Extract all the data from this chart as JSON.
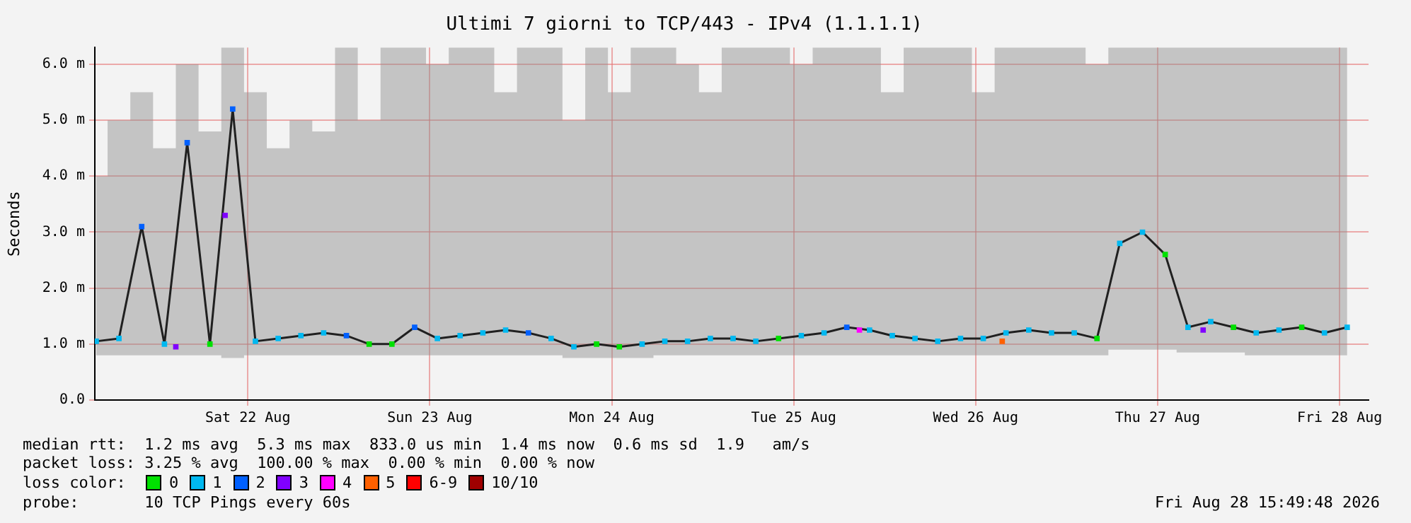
{
  "chart_data": {
    "type": "line",
    "title": "Ultimi 7 giorni to TCP/443 - IPv4 (1.1.1.1)",
    "ylabel": "Seconds",
    "x": [
      "2026-08-21T16:00",
      "2026-08-21T19:00",
      "2026-08-21T22:00",
      "2026-08-22T01:00",
      "2026-08-22T04:00",
      "2026-08-22T07:00",
      "2026-08-22T10:00",
      "2026-08-22T13:00",
      "2026-08-22T16:00",
      "2026-08-22T19:00",
      "2026-08-22T22:00",
      "2026-08-23T01:00",
      "2026-08-23T04:00",
      "2026-08-23T07:00",
      "2026-08-23T10:00",
      "2026-08-23T13:00",
      "2026-08-23T16:00",
      "2026-08-23T19:00",
      "2026-08-23T22:00",
      "2026-08-24T01:00",
      "2026-08-24T04:00",
      "2026-08-24T07:00",
      "2026-08-24T10:00",
      "2026-08-24T13:00",
      "2026-08-24T16:00",
      "2026-08-24T19:00",
      "2026-08-24T22:00",
      "2026-08-25T01:00",
      "2026-08-25T04:00",
      "2026-08-25T07:00",
      "2026-08-25T10:00",
      "2026-08-25T13:00",
      "2026-08-25T16:00",
      "2026-08-25T19:00",
      "2026-08-25T22:00",
      "2026-08-26T01:00",
      "2026-08-26T04:00",
      "2026-08-26T07:00",
      "2026-08-26T10:00",
      "2026-08-26T13:00",
      "2026-08-26T16:00",
      "2026-08-26T19:00",
      "2026-08-26T22:00",
      "2026-08-27T01:00",
      "2026-08-27T04:00",
      "2026-08-27T07:00",
      "2026-08-27T10:00",
      "2026-08-27T13:00",
      "2026-08-27T16:00",
      "2026-08-27T19:00",
      "2026-08-27T22:00",
      "2026-08-28T01:00",
      "2026-08-28T04:00",
      "2026-08-28T07:00",
      "2026-08-28T10:00",
      "2026-08-28T13:00"
    ],
    "series": [
      {
        "color": "#202020",
        "marker": "none",
        "values": [
          1.05,
          1.1,
          3.1,
          1.0,
          4.6,
          1.0,
          5.2,
          1.05,
          1.1,
          1.15,
          1.2,
          1.15,
          1.0,
          1.0,
          1.3,
          1.1,
          1.15,
          1.2,
          1.25,
          1.2,
          1.1,
          0.95,
          1.0,
          0.95,
          1.0,
          1.05,
          1.05,
          1.1,
          1.1,
          1.05,
          1.1,
          1.15,
          1.2,
          1.3,
          1.25,
          1.15,
          1.1,
          1.05,
          1.1,
          1.1,
          1.2,
          1.25,
          1.2,
          1.2,
          1.1,
          2.8,
          3.0,
          2.6,
          1.3,
          1.4,
          1.3,
          1.2,
          1.25,
          1.3,
          1.2,
          1.3
        ],
        "lower": [
          0.8,
          0.8,
          0.8,
          0.8,
          0.8,
          0.8,
          0.75,
          0.8,
          0.8,
          0.8,
          0.8,
          0.8,
          0.8,
          0.8,
          0.8,
          0.8,
          0.8,
          0.8,
          0.8,
          0.8,
          0.8,
          0.75,
          0.75,
          0.75,
          0.75,
          0.8,
          0.8,
          0.8,
          0.8,
          0.8,
          0.8,
          0.8,
          0.8,
          0.8,
          0.8,
          0.8,
          0.8,
          0.8,
          0.8,
          0.8,
          0.8,
          0.8,
          0.8,
          0.8,
          0.8,
          0.9,
          0.9,
          0.9,
          0.85,
          0.85,
          0.85,
          0.8,
          0.8,
          0.8,
          0.8,
          0.8
        ],
        "upper": [
          4.0,
          5.0,
          5.5,
          4.5,
          6.0,
          4.8,
          6.3,
          5.5,
          4.5,
          5.0,
          4.8,
          6.3,
          5.0,
          6.3,
          6.3,
          6.0,
          6.3,
          6.3,
          5.5,
          6.3,
          6.3,
          5.0,
          6.3,
          5.5,
          6.3,
          6.3,
          6.0,
          5.5,
          6.3,
          6.3,
          6.3,
          6.0,
          6.3,
          6.3,
          6.3,
          5.5,
          6.3,
          6.3,
          6.3,
          5.5,
          6.3,
          6.3,
          6.3,
          6.3,
          6.0,
          6.3,
          6.3,
          6.3,
          6.3,
          6.3,
          6.3,
          6.3,
          6.3,
          6.3,
          6.3,
          6.3
        ]
      },
      {
        "type": "scatter",
        "name": "0",
        "color": "#00e000",
        "x": [
          "2026-08-22T07:00",
          "2026-08-23T04:00",
          "2026-08-23T07:00",
          "2026-08-24T10:00",
          "2026-08-24T13:00",
          "2026-08-25T10:00",
          "2026-08-27T04:00",
          "2026-08-27T13:00",
          "2026-08-27T22:00",
          "2026-08-28T07:00"
        ],
        "values": [
          1.0,
          1.0,
          1.0,
          1.0,
          0.95,
          1.1,
          1.1,
          2.6,
          1.3,
          1.3
        ]
      },
      {
        "type": "scatter",
        "name": "1",
        "color": "#00b8f0",
        "x": [
          "2026-08-21T16:00",
          "2026-08-21T19:00",
          "2026-08-22T01:00",
          "2026-08-22T13:00",
          "2026-08-22T16:00",
          "2026-08-22T19:00",
          "2026-08-22T22:00",
          "2026-08-23T13:00",
          "2026-08-23T16:00",
          "2026-08-23T19:00",
          "2026-08-23T22:00",
          "2026-08-24T04:00",
          "2026-08-24T07:00",
          "2026-08-24T16:00",
          "2026-08-24T19:00",
          "2026-08-24T22:00",
          "2026-08-25T01:00",
          "2026-08-25T04:00",
          "2026-08-25T07:00",
          "2026-08-25T13:00",
          "2026-08-25T16:00",
          "2026-08-25T22:00",
          "2026-08-26T01:00",
          "2026-08-26T04:00",
          "2026-08-26T07:00",
          "2026-08-26T10:00",
          "2026-08-26T13:00",
          "2026-08-26T16:00",
          "2026-08-26T19:00",
          "2026-08-26T22:00",
          "2026-08-27T01:00",
          "2026-08-27T07:00",
          "2026-08-27T10:00",
          "2026-08-27T16:00",
          "2026-08-27T19:00",
          "2026-08-28T01:00",
          "2026-08-28T04:00",
          "2026-08-28T10:00",
          "2026-08-28T13:00"
        ],
        "values": [
          1.05,
          1.1,
          1.0,
          1.05,
          1.1,
          1.15,
          1.2,
          1.1,
          1.15,
          1.2,
          1.25,
          1.1,
          0.95,
          1.0,
          1.05,
          1.05,
          1.1,
          1.1,
          1.05,
          1.15,
          1.2,
          1.25,
          1.15,
          1.1,
          1.05,
          1.1,
          1.1,
          1.2,
          1.25,
          1.2,
          1.2,
          2.8,
          3.0,
          1.3,
          1.4,
          1.2,
          1.25,
          1.2,
          1.3
        ]
      },
      {
        "type": "scatter",
        "name": "2",
        "color": "#0060ff",
        "x": [
          "2026-08-21T22:00",
          "2026-08-22T04:00",
          "2026-08-22T10:00",
          "2026-08-23T01:00",
          "2026-08-23T10:00",
          "2026-08-24T01:00",
          "2026-08-25T19:00"
        ],
        "values": [
          3.1,
          4.6,
          5.2,
          1.15,
          1.3,
          1.2,
          1.3
        ]
      },
      {
        "type": "scatter",
        "name": "3",
        "color": "#8000ff",
        "x": [
          "2026-08-22T02:30",
          "2026-08-22T09:00",
          "2026-08-27T18:00"
        ],
        "values": [
          0.95,
          3.3,
          1.25
        ]
      },
      {
        "type": "scatter",
        "name": "4",
        "color": "#ff00ff",
        "x": [
          "2026-08-25T20:40"
        ],
        "values": [
          1.25
        ]
      },
      {
        "type": "scatter",
        "name": "5",
        "color": "#ff6000",
        "x": [
          "2026-08-26T15:30"
        ],
        "values": [
          1.05
        ]
      },
      {
        "type": "scatter",
        "name": "6-9",
        "color": "#ff0000",
        "values": [
          null,
          null,
          null,
          null,
          null,
          null,
          null,
          null,
          null,
          null,
          null,
          null,
          null,
          null,
          null,
          null,
          null,
          null,
          null,
          null,
          null,
          null,
          null,
          null,
          null,
          null,
          null,
          null,
          null,
          null,
          null,
          null,
          null,
          null,
          null,
          null,
          null,
          null,
          null,
          null,
          null,
          null,
          null,
          null,
          null,
          null,
          null,
          null,
          null,
          null,
          null,
          null,
          null,
          null,
          null,
          null
        ]
      },
      {
        "type": "scatter",
        "name": "10/10",
        "color": "#a00000",
        "values": [
          null,
          null,
          null,
          null,
          null,
          null,
          null,
          null,
          null,
          null,
          null,
          null,
          null,
          null,
          null,
          null,
          null,
          null,
          null,
          null,
          null,
          null,
          null,
          null,
          null,
          null,
          null,
          null,
          null,
          null,
          null,
          null,
          null,
          null,
          null,
          null,
          null,
          null,
          null,
          null,
          null,
          null,
          null,
          null,
          null,
          null,
          null,
          null,
          null,
          null,
          null,
          null,
          null,
          null,
          null,
          null
        ]
      }
    ],
    "xlim": [
      "2026-08-21T15:49",
      "2026-08-28T15:49"
    ],
    "xticks": [
      {
        "value": "2026-08-22T12:00",
        "label": "Sat 22 Aug"
      },
      {
        "value": "2026-08-23T12:00",
        "label": "Sun 23 Aug"
      },
      {
        "value": "2026-08-24T12:00",
        "label": "Mon 24 Aug"
      },
      {
        "value": "2026-08-25T12:00",
        "label": "Tue 25 Aug"
      },
      {
        "value": "2026-08-26T12:00",
        "label": "Wed 26 Aug"
      },
      {
        "value": "2026-08-27T12:00",
        "label": "Thu 27 Aug"
      },
      {
        "value": "2026-08-28T12:00",
        "label": "Fri 28 Aug"
      }
    ],
    "ylim": [
      0,
      6.3
    ],
    "yticks": [
      {
        "value": 0,
        "label": "0.0"
      },
      {
        "value": 1,
        "label": "1.0 m"
      },
      {
        "value": 2,
        "label": "2.0 m"
      },
      {
        "value": 3,
        "label": "3.0 m"
      },
      {
        "value": 4,
        "label": "4.0 m"
      },
      {
        "value": 5,
        "label": "5.0 m"
      },
      {
        "value": 6,
        "label": "6.0 m"
      }
    ],
    "grid": true,
    "marker": "square",
    "legend": "bottom",
    "legend_title": "loss color:",
    "annotations": [
      "median rtt:  1.2 ms avg  5.3 ms max  833.0 us min  1.4 ms now  0.6 ms sd  1.9   am/s",
      "packet loss: 3.25 % avg  100.00 % max  0.00 % min  0.00 % now",
      "probe:       10 TCP Pings every 60s",
      "Fri Aug 28 15:49:48 2026"
    ]
  }
}
